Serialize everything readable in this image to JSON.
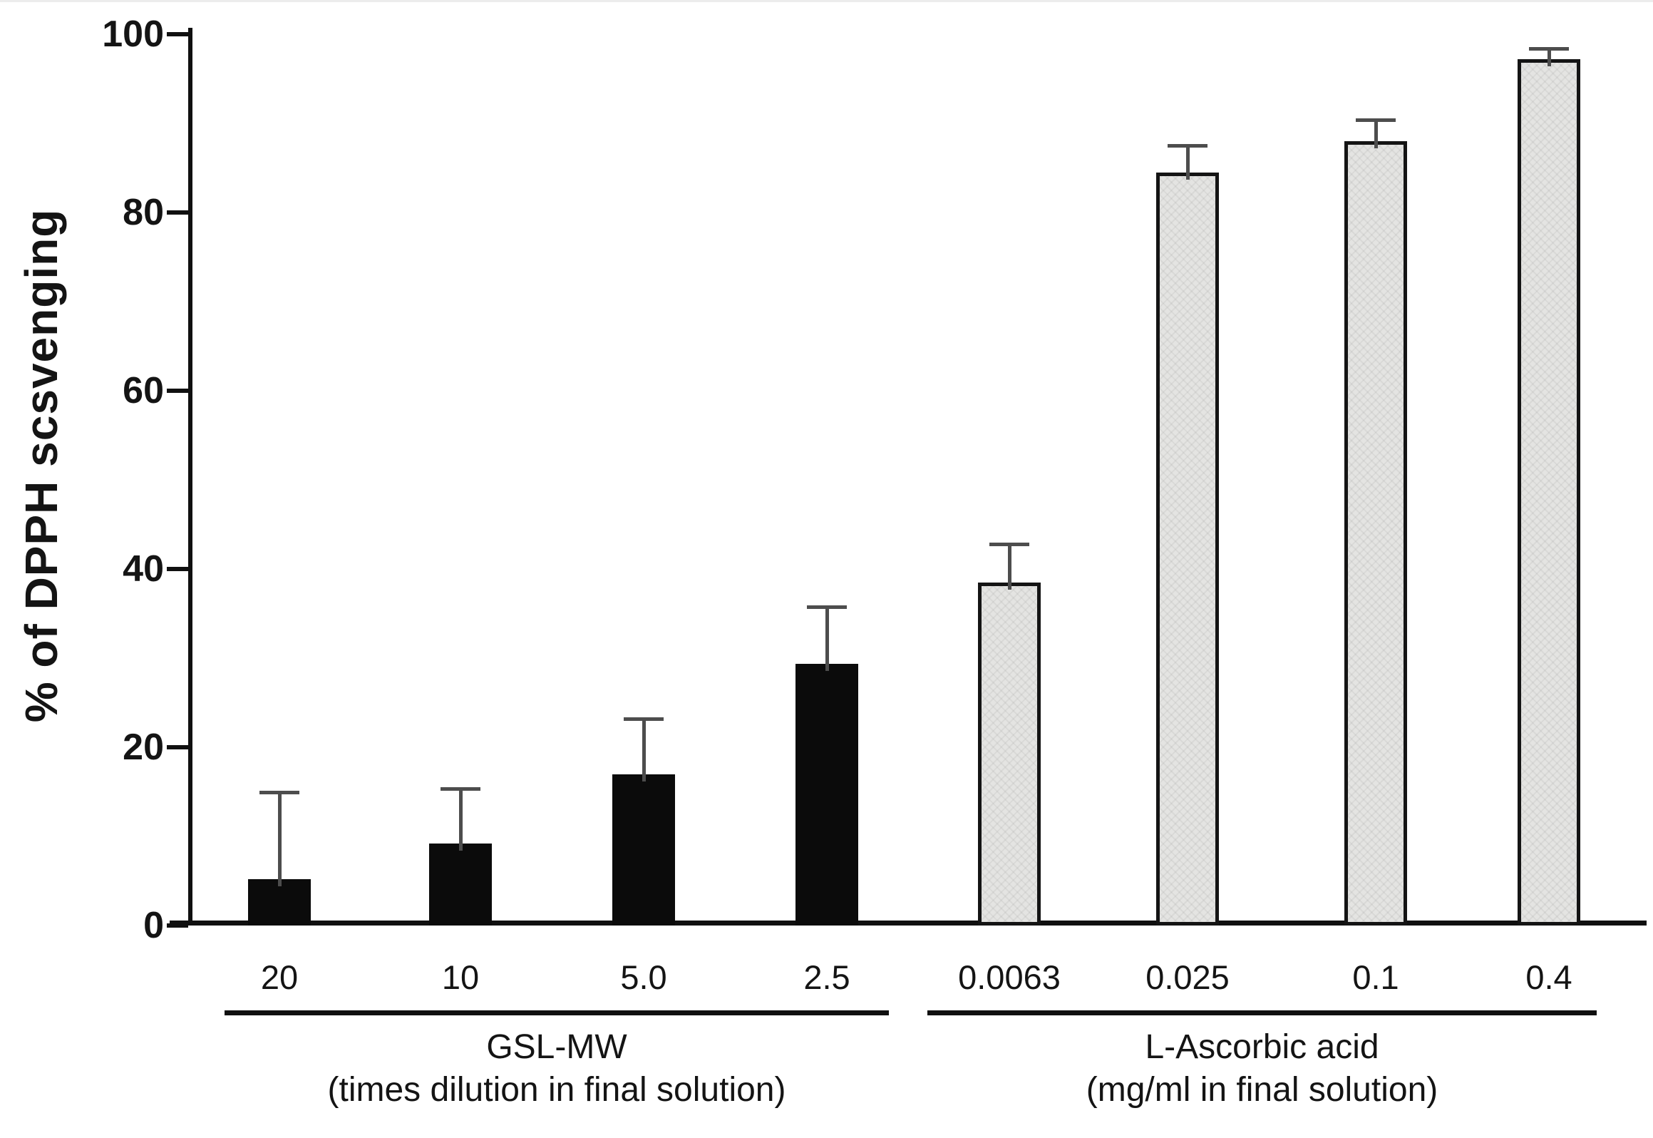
{
  "chart_data": {
    "type": "bar",
    "title": "",
    "ylabel": "% of DPPH scsvenging",
    "xlabel": "",
    "ylim": [
      0,
      100
    ],
    "yticks": [
      0,
      20,
      40,
      60,
      80,
      100
    ],
    "grid": false,
    "legend": null,
    "error_bars": "upper only",
    "groups": [
      {
        "label_line1": "GSL-MW",
        "label_line2": "(times dilution in final solution)",
        "bar_style": "black",
        "categories": [
          "20",
          "10",
          "5.0",
          "2.5"
        ],
        "values": [
          5.2,
          9.2,
          17.0,
          29.4
        ],
        "errors_up": [
          9.8,
          6.2,
          6.2,
          6.4
        ]
      },
      {
        "label_line1": "L-Ascorbic acid",
        "label_line2": "(mg/ml in final solution)",
        "bar_style": "gray",
        "categories": [
          "0.0063",
          "0.025",
          "0.1",
          "0.4"
        ],
        "values": [
          38.5,
          84.5,
          88.0,
          97.2
        ],
        "errors_up": [
          4.3,
          3.0,
          2.4,
          1.2
        ]
      }
    ],
    "colors": {
      "black_bar": "#0b0b0b",
      "gray_bar_fill": "#e4e4e2",
      "gray_bar_border": "#141414",
      "error_bar": "#4d4d4d",
      "axis": "#101010",
      "text": "#141414",
      "background": "#ffffff"
    }
  }
}
